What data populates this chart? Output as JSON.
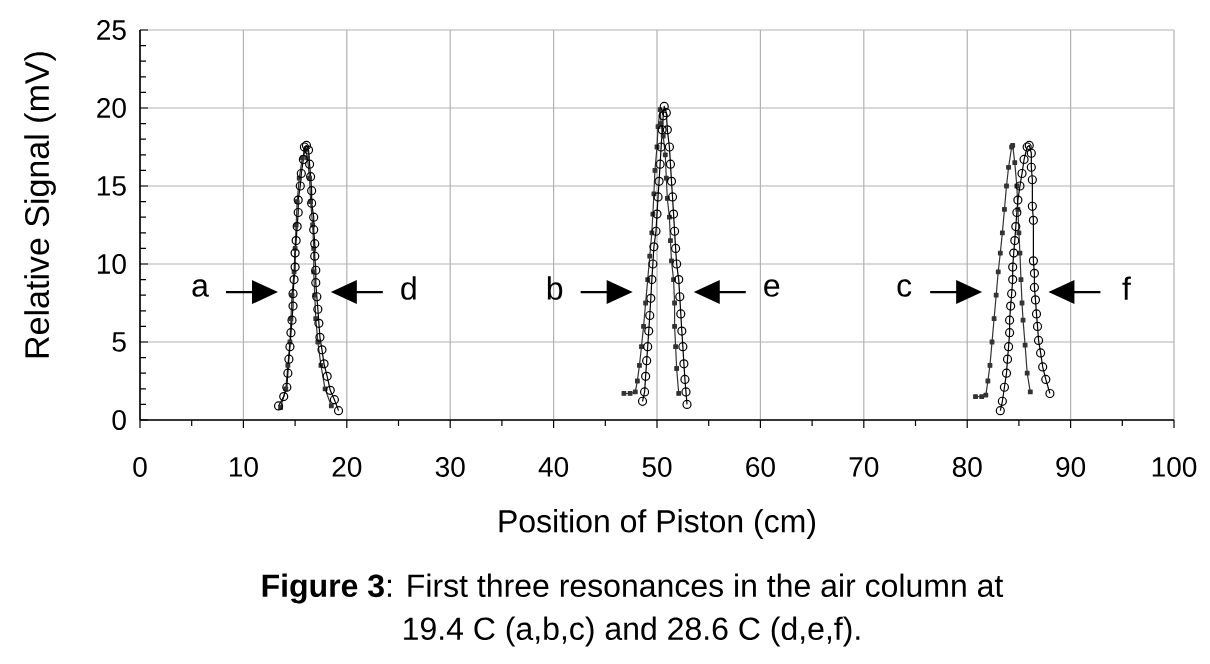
{
  "chart_data": {
    "type": "line",
    "xlabel": "Position of Piston (cm)",
    "ylabel": "Relative Signal (mV)",
    "xlim": [
      0,
      100
    ],
    "ylim": [
      0,
      25
    ],
    "xticks": [
      0,
      {
        "value": 5,
        "label": null
      },
      10,
      {
        "value": 15,
        "label": null
      },
      20,
      {
        "value": 25,
        "label": null
      },
      30,
      {
        "value": 35,
        "label": null
      },
      40,
      {
        "value": 45,
        "label": null
      },
      50,
      {
        "value": 55,
        "label": null
      },
      60,
      {
        "value": 65,
        "label": null
      },
      70,
      {
        "value": 75,
        "label": null
      },
      80,
      {
        "value": 85,
        "label": null
      },
      90,
      {
        "value": 95,
        "label": null
      },
      100
    ],
    "yticks": [
      0,
      {
        "value": 1,
        "label": null
      },
      {
        "value": 2,
        "label": null
      },
      {
        "value": 3,
        "label": null
      },
      {
        "value": 4,
        "label": null
      },
      5,
      {
        "value": 6,
        "label": null
      },
      {
        "value": 7,
        "label": null
      },
      {
        "value": 8,
        "label": null
      },
      {
        "value": 9,
        "label": null
      },
      10,
      {
        "value": 11,
        "label": null
      },
      {
        "value": 12,
        "label": null
      },
      {
        "value": 13,
        "label": null
      },
      {
        "value": 14,
        "label": null
      },
      15,
      {
        "value": 16,
        "label": null
      },
      {
        "value": 17,
        "label": null
      },
      {
        "value": 18,
        "label": null
      },
      {
        "value": 19,
        "label": null
      },
      20,
      {
        "value": 21,
        "label": null
      },
      {
        "value": 22,
        "label": null
      },
      {
        "value": 23,
        "label": null
      },
      {
        "value": 24,
        "label": null
      },
      25
    ],
    "grid": true,
    "series": [
      {
        "color": "#333333",
        "marker": "square",
        "x": [
          13.6,
          14.1,
          14.3,
          14.5,
          14.6,
          14.7,
          14.9,
          15.0,
          15.1,
          15.2,
          15.4,
          15.7,
          16.0,
          16.2,
          16.4,
          16.5,
          16.7,
          16.8,
          16.8,
          16.9,
          17.0,
          17.2,
          17.5,
          17.9,
          18.5,
          null,
          46.8,
          47.4,
          47.9,
          48.1,
          48.3,
          48.5,
          48.7,
          48.9,
          49.1,
          49.3,
          49.5,
          49.6,
          49.7,
          49.8,
          50.0,
          50.1,
          50.3,
          50.4,
          50.6,
          50.8,
          50.9,
          51.0,
          51.2,
          51.3,
          51.4,
          51.6,
          51.7,
          51.7,
          51.8,
          51.9,
          52.1,
          null,
          80.8,
          81.4,
          81.8,
          82.0,
          82.2,
          82.4,
          82.6,
          82.8,
          83.0,
          83.2,
          83.4,
          83.6,
          83.8,
          84.0,
          84.3,
          84.4,
          84.6,
          84.8,
          84.9,
          85.0,
          85.1,
          85.2,
          85.3,
          85.4,
          85.6,
          85.8,
          86.1
        ],
        "values": [
          0.8,
          2.0,
          3.5,
          5.0,
          6.5,
          8.0,
          9.5,
          11.0,
          12.5,
          14.0,
          15.5,
          16.8,
          17.3,
          16.8,
          15.5,
          14.0,
          12.5,
          11.0,
          9.5,
          8.0,
          6.5,
          5.0,
          3.5,
          2.0,
          0.9,
          null,
          1.7,
          1.7,
          1.8,
          2.5,
          3.5,
          4.7,
          6.0,
          7.5,
          9.0,
          10.5,
          12.0,
          13.2,
          14.5,
          16.0,
          17.5,
          18.8,
          19.9,
          19.0,
          18.2,
          17.0,
          15.5,
          14.2,
          13.0,
          11.5,
          10.2,
          9.0,
          7.5,
          6.0,
          4.7,
          3.3,
          1.7,
          null,
          1.5,
          1.5,
          1.6,
          2.5,
          3.5,
          5.0,
          6.5,
          8.0,
          9.5,
          10.7,
          12.0,
          13.5,
          15.0,
          16.2,
          17.5,
          17.6,
          16.5,
          15.0,
          13.5,
          12.0,
          10.7,
          9.0,
          7.5,
          6.4,
          4.8,
          3.0,
          1.8
        ]
      },
      {
        "color": "#000000",
        "marker": "circle",
        "x": [
          13.4,
          13.9,
          14.2,
          14.3,
          14.4,
          14.5,
          14.6,
          14.7,
          14.8,
          14.8,
          14.9,
          15.0,
          15.0,
          15.1,
          15.2,
          15.3,
          15.3,
          15.5,
          15.6,
          15.8,
          15.9,
          16.1,
          16.3,
          16.4,
          16.5,
          16.6,
          16.6,
          16.8,
          16.8,
          16.9,
          16.9,
          17.0,
          17.0,
          17.1,
          17.2,
          17.3,
          17.4,
          17.6,
          17.8,
          18.1,
          18.4,
          18.8,
          19.2,
          null,
          48.6,
          48.8,
          48.9,
          49.0,
          49.1,
          49.2,
          49.3,
          49.4,
          49.5,
          49.6,
          49.7,
          49.9,
          50.0,
          50.1,
          50.2,
          50.3,
          50.4,
          50.5,
          50.6,
          50.7,
          50.9,
          51.0,
          51.2,
          51.3,
          51.4,
          51.5,
          51.6,
          51.7,
          51.8,
          51.9,
          52.1,
          52.2,
          52.3,
          52.4,
          52.5,
          52.6,
          52.7,
          52.8,
          52.9,
          null,
          83.2,
          83.4,
          83.6,
          83.8,
          83.9,
          84.0,
          84.1,
          84.1,
          84.2,
          84.3,
          84.4,
          84.4,
          84.5,
          84.6,
          84.7,
          84.8,
          84.9,
          85.1,
          85.3,
          85.5,
          85.8,
          86.0,
          86.2,
          86.2,
          86.3,
          86.3,
          86.4,
          86.4,
          86.5,
          86.5,
          86.6,
          86.7,
          86.8,
          86.9,
          87.1,
          87.3,
          87.6,
          88.0
        ],
        "values": [
          0.9,
          1.5,
          2.1,
          3.0,
          3.9,
          4.7,
          5.6,
          6.4,
          7.3,
          8.1,
          9.0,
          9.8,
          10.7,
          11.5,
          12.4,
          13.3,
          14.1,
          15.0,
          15.8,
          16.7,
          17.5,
          17.6,
          17.3,
          16.4,
          15.6,
          14.7,
          13.9,
          13.0,
          12.2,
          11.3,
          10.5,
          9.6,
          8.8,
          7.9,
          7.1,
          6.2,
          5.3,
          4.5,
          3.6,
          2.8,
          1.9,
          1.3,
          0.6,
          null,
          1.2,
          1.8,
          2.8,
          3.8,
          4.7,
          5.7,
          6.7,
          7.8,
          9.0,
          10.0,
          11.1,
          12.1,
          13.2,
          14.3,
          15.3,
          16.4,
          17.5,
          18.6,
          19.5,
          20.1,
          19.7,
          18.6,
          17.5,
          16.4,
          15.3,
          14.3,
          13.2,
          12.1,
          11.0,
          10.0,
          9.0,
          7.9,
          6.8,
          5.7,
          4.7,
          3.6,
          2.6,
          1.8,
          1.0,
          null,
          0.6,
          1.2,
          2.1,
          3.0,
          3.9,
          4.7,
          5.6,
          6.4,
          7.3,
          8.1,
          9.0,
          9.8,
          10.7,
          11.5,
          12.4,
          13.3,
          14.1,
          15.0,
          15.8,
          16.7,
          17.5,
          17.6,
          17.1,
          16.2,
          15.4,
          13.7,
          12.8,
          10.2,
          9.4,
          8.5,
          7.7,
          6.8,
          6.0,
          5.1,
          4.3,
          3.4,
          2.6,
          1.7
        ]
      }
    ],
    "annotations": [
      {
        "text": "a",
        "x": 14.7,
        "y": 8.2
      },
      {
        "text": "d",
        "x": 17.1,
        "y": 8.2
      },
      {
        "text": "b",
        "x": 49.0,
        "y": 8.2
      },
      {
        "text": "e",
        "x": 52.2,
        "y": 8.2
      },
      {
        "text": "c",
        "x": 82.8,
        "y": 8.2
      },
      {
        "text": "f",
        "x": 86.5,
        "y": 8.2
      },
      "**Figure 3**: First three resonances in the air column at 19.4 C (a,b,c) and 28.6 C (d,e,f)."
    ]
  }
}
